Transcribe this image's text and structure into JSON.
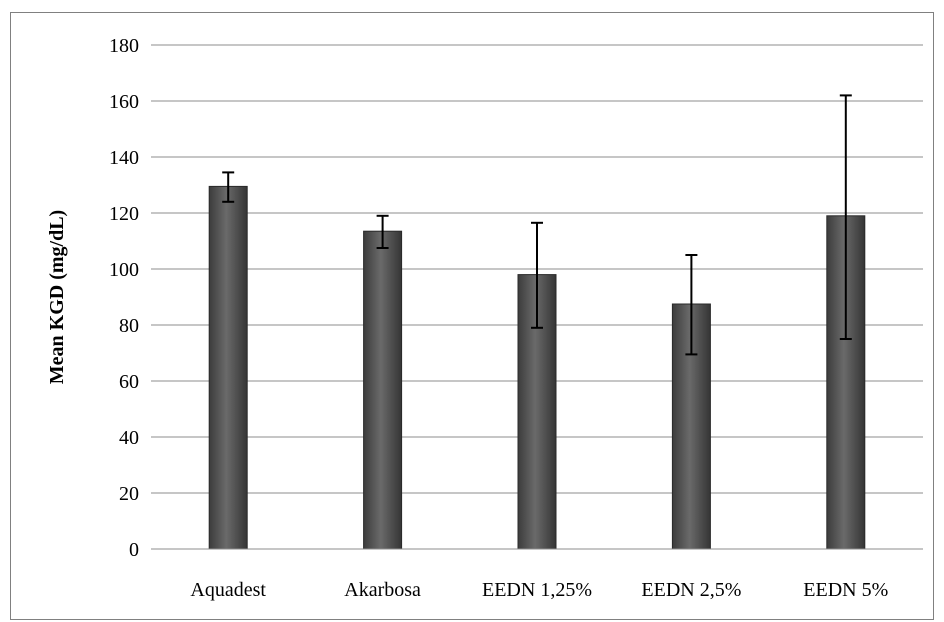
{
  "chart_data": {
    "type": "bar",
    "title": "",
    "xlabel": "",
    "ylabel": "Mean KGD (mg/dL)",
    "categories": [
      "Aquadest",
      "Akarbosa",
      "EEDN 1,25%",
      "EEDN 2,5%",
      "EEDN 5%"
    ],
    "values": [
      129.5,
      113.5,
      98,
      87.5,
      119
    ],
    "error_low": [
      124,
      107.5,
      79,
      69.5,
      75
    ],
    "error_high": [
      134.5,
      119,
      116.5,
      105,
      162
    ],
    "ylim": [
      0,
      180
    ],
    "yticks": [
      "0",
      "20",
      "40",
      "60",
      "80",
      "100",
      "120",
      "140",
      "160",
      "180"
    ],
    "grid": true,
    "legend": "none",
    "colors": {
      "bar": "#555555",
      "bar_edge": "#2a2a2a",
      "grid": "#8c8c8c",
      "error_bar": "#000000"
    }
  }
}
